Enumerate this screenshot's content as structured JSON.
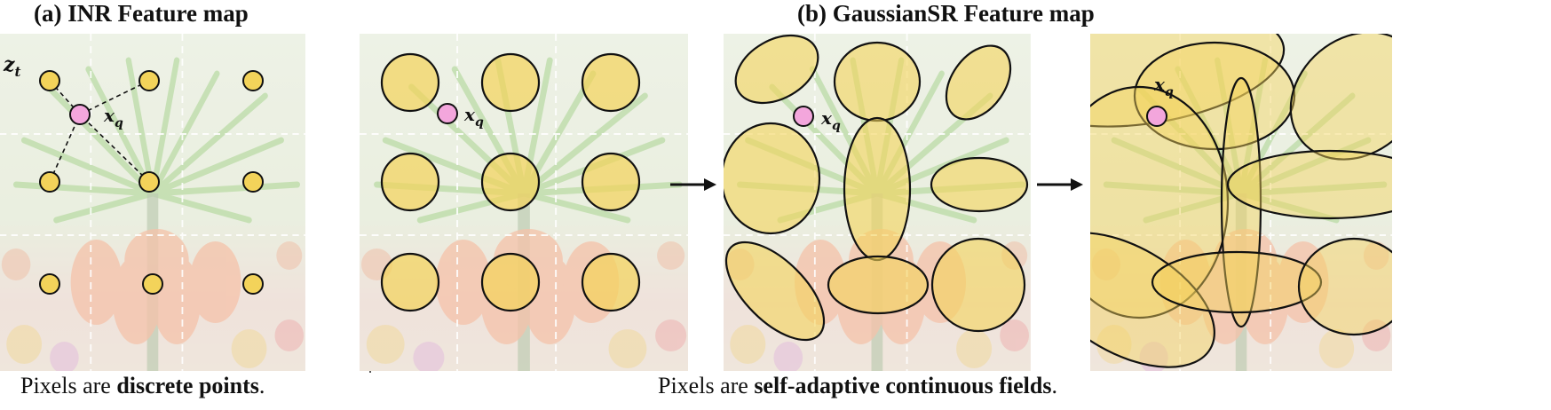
{
  "titles": {
    "a": "(a) INR Feature map",
    "b": "(b) GaussianSR Feature map"
  },
  "captions": {
    "a": {
      "prefix": "Pixels are ",
      "bold": "discrete points",
      "suffix": "."
    },
    "b": {
      "prefix": "Pixels are ",
      "bold": "self-adaptive continuous fields",
      "suffix": "."
    }
  },
  "labels": {
    "latent": "z",
    "latent_sub": "t",
    "query": "x",
    "query_sub": "q"
  },
  "colors": {
    "gaussian_fill": "#f3d35a",
    "gaussian_stroke": "#111111",
    "query_fill": "#f3a6dc",
    "grid_line": "#ffffff",
    "leaf_green": "#7fbf5a",
    "flower_orange": "#e98a5a",
    "background_tint": "#dfe8d2"
  },
  "icons": [
    "right-arrow-icon",
    "right-arrow-icon"
  ]
}
